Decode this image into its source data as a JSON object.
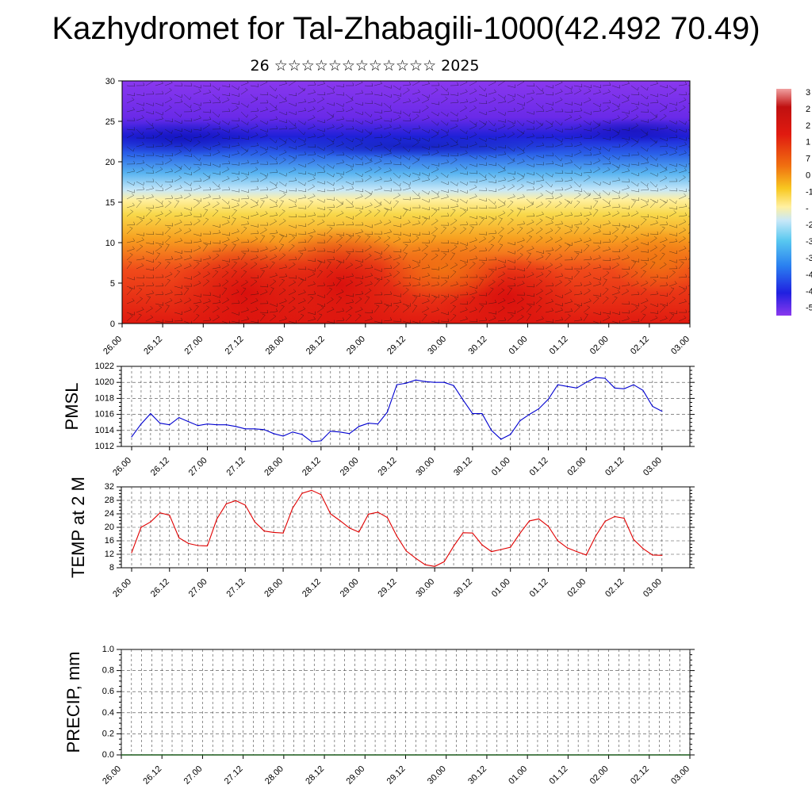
{
  "header": {
    "title": "Kazhydromet for Tal-Zhabagili-1000(42.492 70.49)",
    "subtitle": "26 ☆☆☆☆☆☆☆☆☆☆☆☆ 2025"
  },
  "time_labels": [
    "26.00",
    "26.12",
    "27.00",
    "27.12",
    "28.00",
    "28.12",
    "29.00",
    "29.12",
    "30.00",
    "30.12",
    "01.00",
    "01.12",
    "02.00",
    "02.12",
    "03.00"
  ],
  "chart_data": [
    {
      "type": "heatmap",
      "name": "cross-section",
      "x": [
        "26.00",
        "26.12",
        "27.00",
        "27.12",
        "28.00",
        "28.12",
        "29.00",
        "29.12",
        "30.00",
        "30.12",
        "01.00",
        "01.12",
        "02.00",
        "02.12",
        "03.00"
      ],
      "ylim": [
        0,
        30
      ],
      "yticks": [
        0,
        5,
        10,
        15,
        20,
        25,
        30
      ],
      "colorbar_labels": [
        "3",
        "2",
        "2",
        "1",
        "7",
        "0",
        "-1",
        "-",
        "-2",
        "-3",
        "-3",
        "-4",
        "-4",
        "-5"
      ],
      "colors": {
        "warm": "#e8261c",
        "mid": "#f5d94a",
        "cool": "#3aa0e8",
        "cold": "#2020e0",
        "top": "#7b2ee6"
      }
    },
    {
      "type": "line",
      "ylabel": "PMSL",
      "ylim": [
        1012,
        1022
      ],
      "yticks": [
        "1012",
        "1014",
        "1016",
        "1018",
        "1020",
        "1022"
      ],
      "color": "#0000d0",
      "x_step_hours": 3,
      "values": [
        1013.2,
        1014.8,
        1016.1,
        1014.9,
        1014.7,
        1015.6,
        1015.1,
        1014.6,
        1014.8,
        1014.7,
        1014.7,
        1014.5,
        1014.2,
        1014.2,
        1014.1,
        1013.6,
        1013.3,
        1013.8,
        1013.5,
        1012.6,
        1012.7,
        1013.9,
        1013.8,
        1013.6,
        1014.5,
        1014.9,
        1014.8,
        1016.3,
        1019.7,
        1019.9,
        1020.3,
        1020.1,
        1020.0,
        1020.0,
        1019.6,
        1017.8,
        1016.1,
        1016.1,
        1014.0,
        1012.9,
        1013.5,
        1015.2,
        1016.0,
        1016.7,
        1017.9,
        1019.7,
        1019.5,
        1019.3,
        1020.0,
        1020.6,
        1020.5,
        1019.3,
        1019.2,
        1019.7,
        1019.0,
        1017.0,
        1016.4
      ]
    },
    {
      "type": "line",
      "ylabel": "TEMP at 2 M",
      "ylim": [
        8,
        32
      ],
      "yticks": [
        "8",
        "12",
        "16",
        "20",
        "24",
        "28",
        "32"
      ],
      "color": "#e00000",
      "x_step_hours": 3,
      "values": [
        12.5,
        20.0,
        21.6,
        24.3,
        23.6,
        16.9,
        15.2,
        14.6,
        14.5,
        22.5,
        27.0,
        27.9,
        26.6,
        21.6,
        18.9,
        18.5,
        18.3,
        25.7,
        30.1,
        31.0,
        29.7,
        24.0,
        22.0,
        19.8,
        18.6,
        23.9,
        24.5,
        22.9,
        17.4,
        13.0,
        10.8,
        8.9,
        8.4,
        9.8,
        14.4,
        18.4,
        18.3,
        14.8,
        12.8,
        13.4,
        14.1,
        18.2,
        21.9,
        22.5,
        20.3,
        16.0,
        13.9,
        12.8,
        11.8,
        17.4,
        21.8,
        23.2,
        22.7,
        16.4,
        13.7,
        11.8,
        11.7
      ]
    },
    {
      "type": "bar",
      "ylabel": "PRECIP, mm",
      "ylim": [
        0,
        1
      ],
      "yticks": [
        "0.0",
        "0.2",
        "0.4",
        "0.6",
        "0.8",
        "1.0"
      ],
      "values": []
    }
  ]
}
